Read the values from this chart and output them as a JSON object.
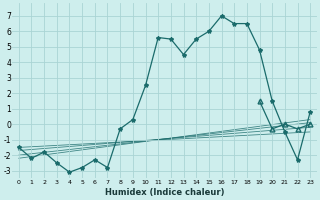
{
  "xlabel": "Humidex (Indice chaleur)",
  "background_color": "#ceeeed",
  "grid_color": "#aad4d4",
  "line_color": "#1a6b6b",
  "x_main": [
    0,
    1,
    2,
    3,
    4,
    5,
    6,
    7,
    8,
    9,
    10,
    11,
    12,
    13,
    14,
    15,
    16,
    17,
    18,
    19,
    20,
    21,
    22,
    23
  ],
  "y_main": [
    -1.5,
    -2.2,
    -1.8,
    -2.5,
    -3.1,
    -2.8,
    -2.3,
    -2.8,
    -0.3,
    0.3,
    2.5,
    5.6,
    5.5,
    4.5,
    5.5,
    6.0,
    7.0,
    6.5,
    6.5,
    4.8,
    1.5,
    -0.5,
    -2.3,
    0.8
  ],
  "x_secondary": [
    19,
    20,
    21,
    22,
    23
  ],
  "y_secondary": [
    1.5,
    -0.3,
    0.0,
    -0.3,
    0.0
  ],
  "ref_lines": [
    {
      "x": [
        0,
        23
      ],
      "y": [
        -1.5,
        -0.5
      ]
    },
    {
      "x": [
        0,
        23
      ],
      "y": [
        -1.7,
        -0.2
      ]
    },
    {
      "x": [
        0,
        23
      ],
      "y": [
        -2.0,
        0.1
      ]
    },
    {
      "x": [
        0,
        23
      ],
      "y": [
        -2.2,
        0.3
      ]
    }
  ],
  "ylim": [
    -3.5,
    7.8
  ],
  "xlim": [
    -0.5,
    23.5
  ],
  "yticks": [
    -3,
    -2,
    -1,
    0,
    1,
    2,
    3,
    4,
    5,
    6,
    7
  ],
  "xticks": [
    0,
    1,
    2,
    3,
    4,
    5,
    6,
    7,
    8,
    9,
    10,
    11,
    12,
    13,
    14,
    15,
    16,
    17,
    18,
    19,
    20,
    21,
    22,
    23
  ]
}
